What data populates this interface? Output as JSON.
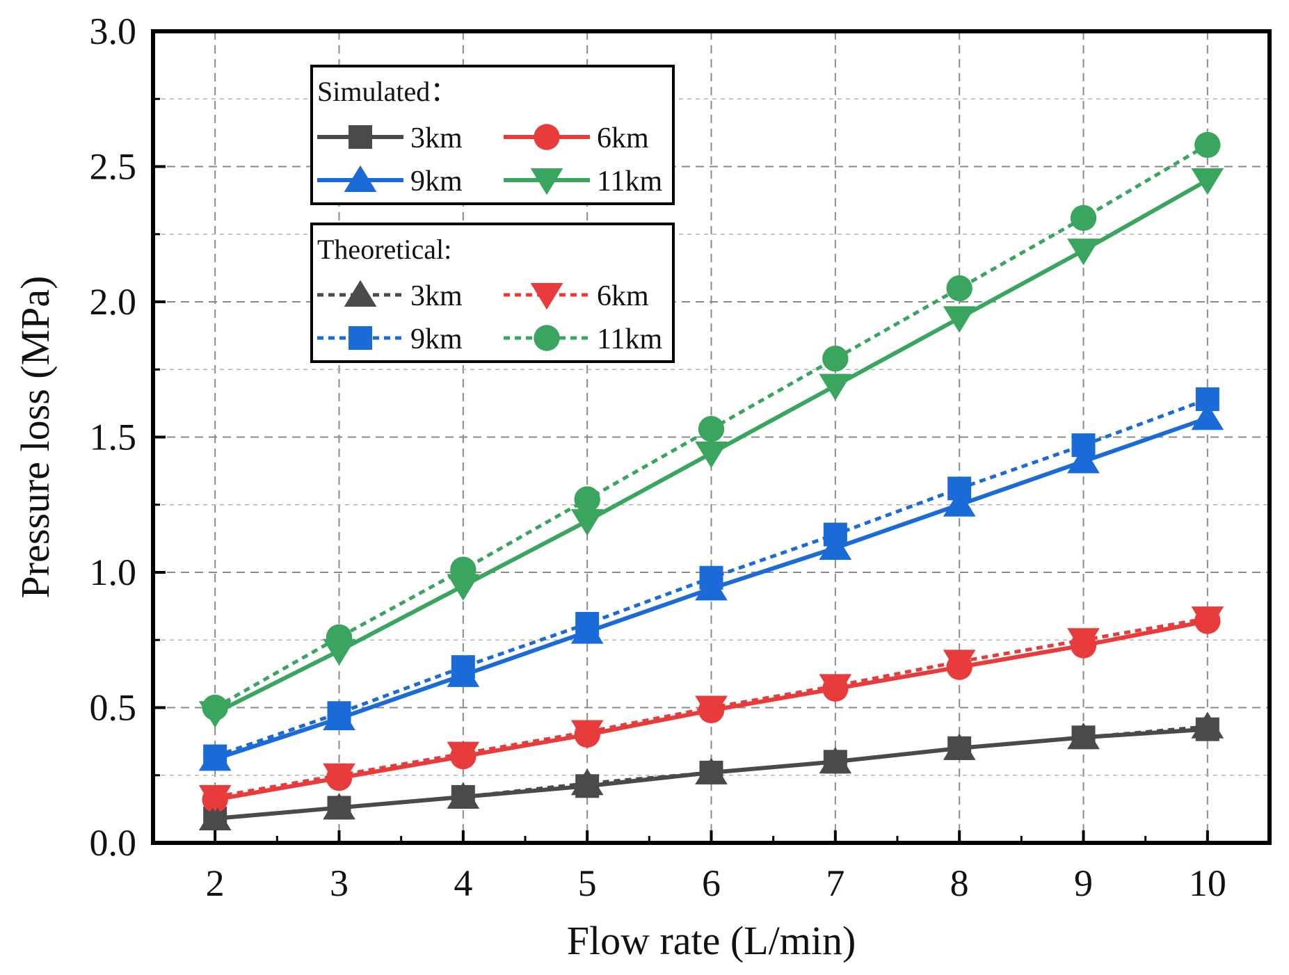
{
  "chart_data": {
    "type": "line",
    "title": "",
    "xlabel": "Flow rate (L/min)",
    "ylabel": "Pressure loss (MPa)",
    "x": [
      2,
      3,
      4,
      5,
      6,
      7,
      8,
      9,
      10
    ],
    "xlim": [
      1.5,
      10.5
    ],
    "ylim": [
      0.0,
      3.0
    ],
    "xticks": [
      "2",
      "3",
      "4",
      "5",
      "6",
      "7",
      "8",
      "9",
      "10"
    ],
    "yticks": [
      "0.0",
      "0.5",
      "1.0",
      "1.5",
      "2.0",
      "2.5",
      "3.0"
    ],
    "grid": true,
    "legend_position": "top-left",
    "legend_groups": [
      {
        "heading": "Simulated：",
        "group": "simulated"
      },
      {
        "heading": "Theoretical:",
        "group": "theoretical"
      }
    ],
    "series": [
      {
        "name": "3km",
        "group": "simulated",
        "style": "solid",
        "color": "#4a4a4a",
        "marker": "square",
        "values": [
          0.09,
          0.13,
          0.17,
          0.21,
          0.26,
          0.3,
          0.35,
          0.39,
          0.42
        ]
      },
      {
        "name": "6km",
        "group": "simulated",
        "style": "solid",
        "color": "#e83b3b",
        "marker": "circle",
        "values": [
          0.16,
          0.24,
          0.32,
          0.4,
          0.49,
          0.57,
          0.65,
          0.73,
          0.82
        ]
      },
      {
        "name": "9km",
        "group": "simulated",
        "style": "solid",
        "color": "#1a6ad8",
        "marker": "triangle-up",
        "values": [
          0.31,
          0.46,
          0.62,
          0.78,
          0.94,
          1.09,
          1.25,
          1.41,
          1.57
        ]
      },
      {
        "name": "11km",
        "group": "simulated",
        "style": "solid",
        "color": "#3aa55e",
        "marker": "triangle-down",
        "values": [
          0.48,
          0.71,
          0.95,
          1.19,
          1.44,
          1.69,
          1.94,
          2.19,
          2.45
        ]
      },
      {
        "name": "3km",
        "group": "theoretical",
        "style": "dotted",
        "color": "#4a4a4a",
        "marker": "triangle-up",
        "values": [
          0.09,
          0.13,
          0.17,
          0.22,
          0.26,
          0.3,
          0.35,
          0.39,
          0.43
        ]
      },
      {
        "name": "6km",
        "group": "theoretical",
        "style": "dotted",
        "color": "#e83b3b",
        "marker": "triangle-down",
        "values": [
          0.17,
          0.25,
          0.33,
          0.41,
          0.5,
          0.58,
          0.67,
          0.75,
          0.83
        ]
      },
      {
        "name": "9km",
        "group": "theoretical",
        "style": "dotted",
        "color": "#1a6ad8",
        "marker": "square",
        "values": [
          0.32,
          0.48,
          0.65,
          0.81,
          0.98,
          1.14,
          1.31,
          1.47,
          1.64
        ]
      },
      {
        "name": "11km",
        "group": "theoretical",
        "style": "dotted",
        "color": "#3aa55e",
        "marker": "circle",
        "values": [
          0.5,
          0.76,
          1.01,
          1.27,
          1.53,
          1.79,
          2.05,
          2.31,
          2.58
        ]
      }
    ]
  }
}
